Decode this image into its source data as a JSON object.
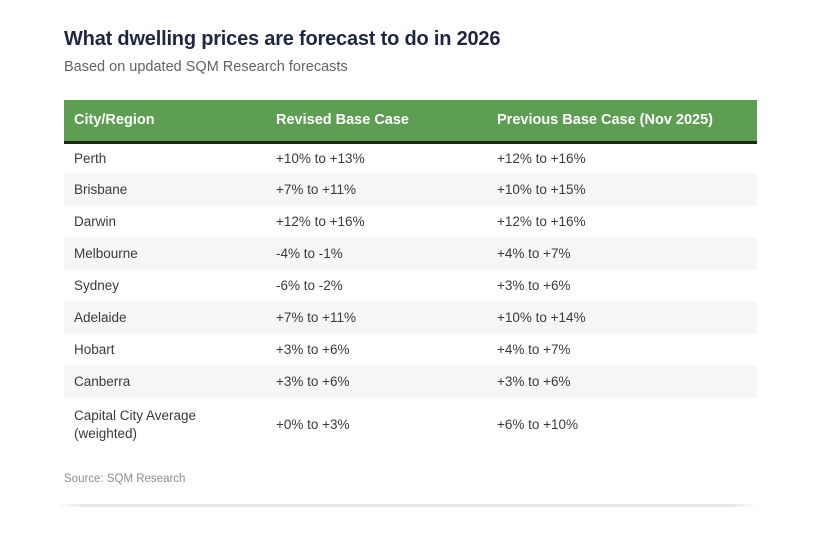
{
  "header": {
    "title": "What dwelling prices are forecast to do in 2026",
    "subtitle": "Based on updated SQM Research forecasts"
  },
  "footer": {
    "source": "Source: SQM Research"
  },
  "colors": {
    "header_bg": "#5d9e53",
    "header_border": "#1c2a13",
    "title_text": "#1d2840",
    "subtitle_text": "#5f6368",
    "row_alt_bg": "#f6f6f6",
    "cell_text": "#3a3a3a",
    "source_text": "#8e8e8e"
  },
  "chart_data": {
    "type": "table",
    "title": "What dwelling prices are forecast to do in 2026",
    "subtitle": "Based on updated SQM Research forecasts",
    "source": "Source: SQM Research",
    "columns": [
      "City/Region",
      "Revised Base Case",
      "Previous Base Case (Nov 2025)"
    ],
    "rows": [
      [
        "Perth",
        "+10% to +13%",
        "+12% to +16%"
      ],
      [
        "Brisbane",
        "+7% to +11%",
        "+10% to +15%"
      ],
      [
        "Darwin",
        "+12% to +16%",
        "+12% to +16%"
      ],
      [
        "Melbourne",
        "-4% to -1%",
        "+4% to +7%"
      ],
      [
        "Sydney",
        "-6% to -2%",
        "+3% to +6%"
      ],
      [
        "Adelaide",
        "+7% to +11%",
        "+10% to +14%"
      ],
      [
        "Hobart",
        "+3% to +6%",
        "+4% to +7%"
      ],
      [
        "Canberra",
        "+3% to +6%",
        "+3% to +6%"
      ],
      [
        "Capital City Average (weighted)",
        "+0% to +3%",
        "+6% to +10%"
      ]
    ]
  }
}
